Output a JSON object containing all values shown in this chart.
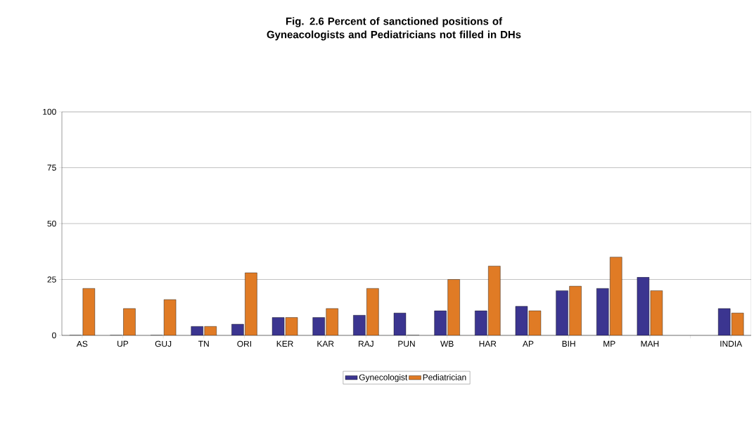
{
  "chart_data": {
    "type": "bar",
    "title": "Fig. 2.6 Percent of sanctioned positions of Gyneacologists and Pediatricians not filled in DHs",
    "categories": [
      "AS",
      "UP",
      "GUJ",
      "TN",
      "ORI",
      "KER",
      "KAR",
      "RAJ",
      "PUN",
      "WB",
      "HAR",
      "AP",
      "BIH",
      "MP",
      "MAH",
      null,
      "INDIA"
    ],
    "series": [
      {
        "name": "Gynecologist",
        "color": "#3b3590",
        "values": [
          0,
          0,
          0,
          4,
          5,
          8,
          8,
          9,
          10,
          11,
          11,
          13,
          20,
          21,
          26,
          null,
          12
        ]
      },
      {
        "name": "Pediatrician",
        "color": "#e07b25",
        "values": [
          21,
          12,
          16,
          4,
          28,
          8,
          12,
          21,
          0,
          25,
          31,
          11,
          22,
          35,
          20,
          null,
          10
        ]
      }
    ],
    "ylim": [
      0,
      100
    ],
    "yticks": [
      0,
      25,
      50,
      75,
      100
    ],
    "grid": "y",
    "legend": "bottom"
  }
}
